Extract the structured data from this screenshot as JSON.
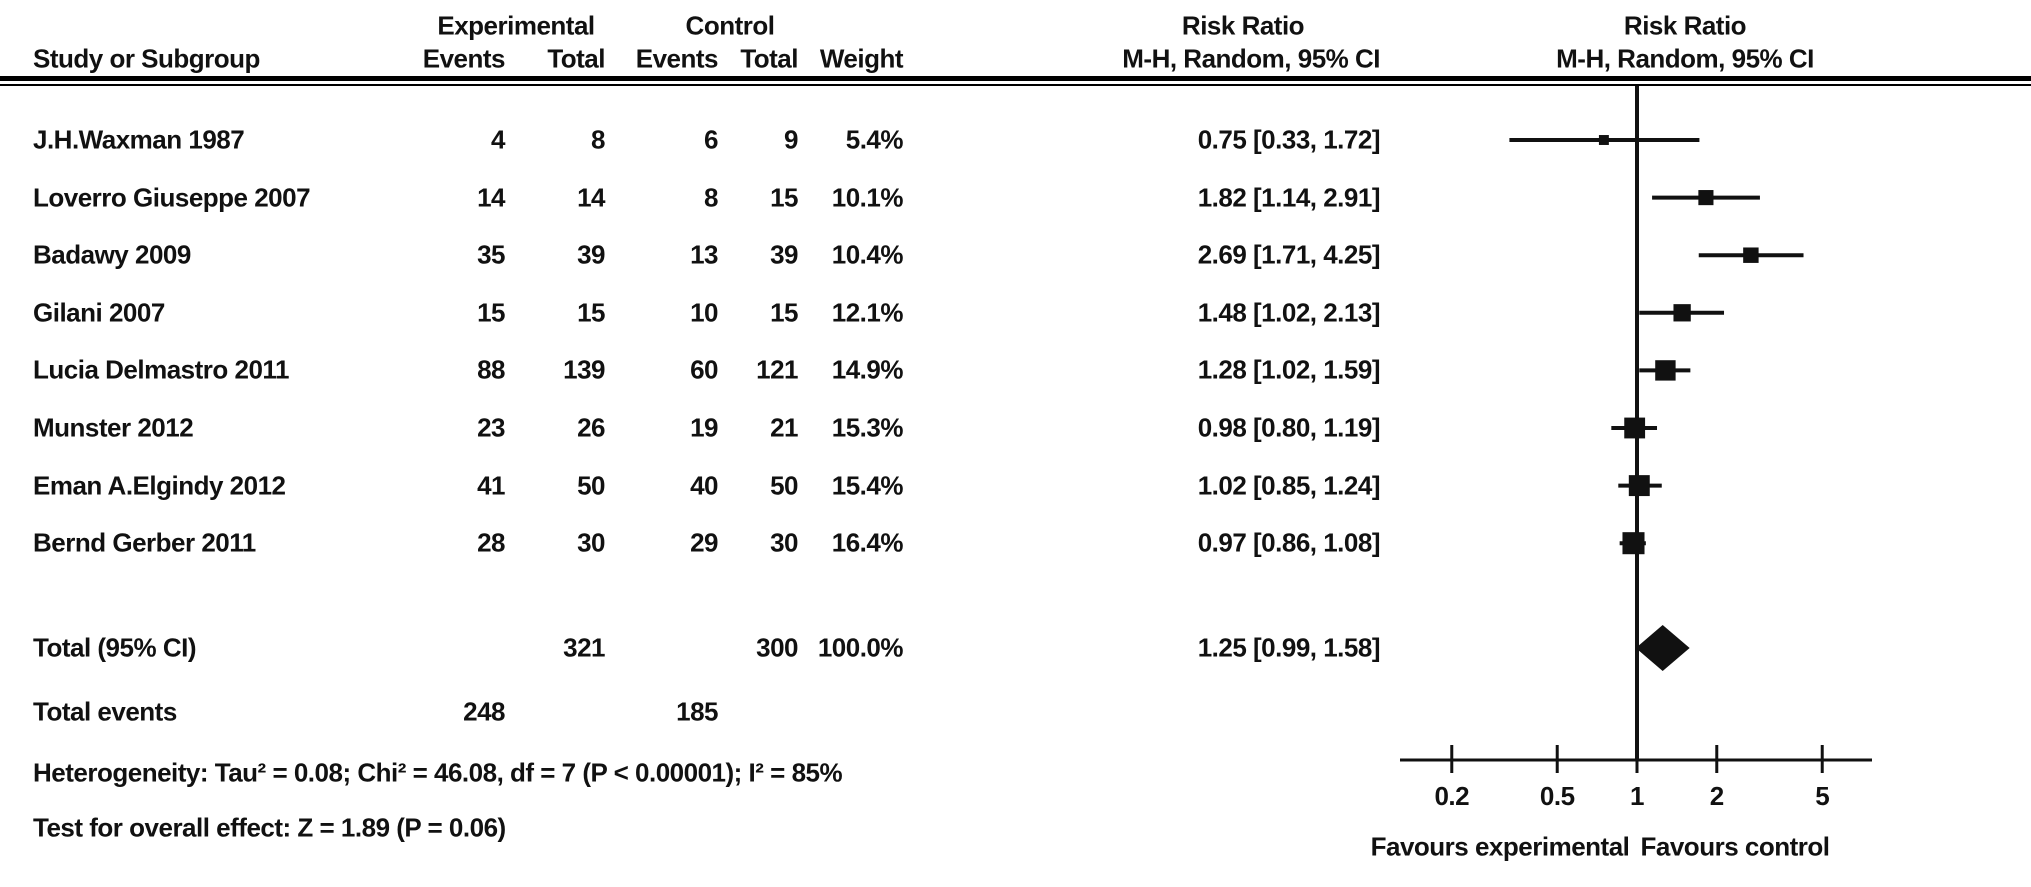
{
  "header": {
    "study": "Study or Subgroup",
    "experimental": "Experimental",
    "control": "Control",
    "events": "Events",
    "total": "Total",
    "weight": "Weight",
    "risk_ratio": "Risk Ratio",
    "method_ci": "M-H, Random, 95% CI"
  },
  "footer": {
    "heterogeneity": "Heterogeneity: Tau² = 0.08; Chi² = 46.08, df = 7 (P < 0.00001); I² = 85%",
    "overall_effect": "Test for overall effect: Z = 1.89 (P = 0.06)"
  },
  "chart_data": {
    "type": "forest",
    "effect_measure": "Risk Ratio",
    "model": "M-H, Random, 95% CI",
    "x_scale": "log",
    "x_ticks": [
      0.2,
      0.5,
      1,
      2,
      5
    ],
    "null_line": 1,
    "favours_left": "Favours experimental",
    "favours_right": "Favours control",
    "studies": [
      {
        "name": "J.H.Waxman 1987",
        "exp_events": 4,
        "exp_total": 8,
        "ctrl_events": 6,
        "ctrl_total": 9,
        "weight": "5.4%",
        "weight_pct": 5.4,
        "rr": 0.75,
        "ci_low": 0.33,
        "ci_high": 1.72,
        "rr_label": "0.75 [0.33, 1.72]"
      },
      {
        "name": "Loverro Giuseppe 2007",
        "exp_events": 14,
        "exp_total": 14,
        "ctrl_events": 8,
        "ctrl_total": 15,
        "weight": "10.1%",
        "weight_pct": 10.1,
        "rr": 1.82,
        "ci_low": 1.14,
        "ci_high": 2.91,
        "rr_label": "1.82 [1.14, 2.91]"
      },
      {
        "name": "Badawy 2009",
        "exp_events": 35,
        "exp_total": 39,
        "ctrl_events": 13,
        "ctrl_total": 39,
        "weight": "10.4%",
        "weight_pct": 10.4,
        "rr": 2.69,
        "ci_low": 1.71,
        "ci_high": 4.25,
        "rr_label": "2.69 [1.71, 4.25]"
      },
      {
        "name": "Gilani 2007",
        "exp_events": 15,
        "exp_total": 15,
        "ctrl_events": 10,
        "ctrl_total": 15,
        "weight": "12.1%",
        "weight_pct": 12.1,
        "rr": 1.48,
        "ci_low": 1.02,
        "ci_high": 2.13,
        "rr_label": "1.48 [1.02, 2.13]"
      },
      {
        "name": "Lucia Delmastro 2011",
        "exp_events": 88,
        "exp_total": 139,
        "ctrl_events": 60,
        "ctrl_total": 121,
        "weight": "14.9%",
        "weight_pct": 14.9,
        "rr": 1.28,
        "ci_low": 1.02,
        "ci_high": 1.59,
        "rr_label": "1.28 [1.02, 1.59]"
      },
      {
        "name": "Munster 2012",
        "exp_events": 23,
        "exp_total": 26,
        "ctrl_events": 19,
        "ctrl_total": 21,
        "weight": "15.3%",
        "weight_pct": 15.3,
        "rr": 0.98,
        "ci_low": 0.8,
        "ci_high": 1.19,
        "rr_label": "0.98 [0.80, 1.19]"
      },
      {
        "name": "Eman A.Elgindy 2012",
        "exp_events": 41,
        "exp_total": 50,
        "ctrl_events": 40,
        "ctrl_total": 50,
        "weight": "15.4%",
        "weight_pct": 15.4,
        "rr": 1.02,
        "ci_low": 0.85,
        "ci_high": 1.24,
        "rr_label": "1.02 [0.85, 1.24]"
      },
      {
        "name": "Bernd Gerber 2011",
        "exp_events": 28,
        "exp_total": 30,
        "ctrl_events": 29,
        "ctrl_total": 30,
        "weight": "16.4%",
        "weight_pct": 16.4,
        "rr": 0.97,
        "ci_low": 0.86,
        "ci_high": 1.08,
        "rr_label": "0.97 [0.86, 1.08]"
      }
    ],
    "total": {
      "label": "Total (95% CI)",
      "exp_total": 321,
      "ctrl_total": 300,
      "weight": "100.0%",
      "rr": 1.25,
      "ci_low": 0.99,
      "ci_high": 1.58,
      "rr_label": "1.25 [0.99, 1.58]"
    },
    "total_events": {
      "label": "Total events",
      "exp": 248,
      "ctrl": 185
    }
  }
}
